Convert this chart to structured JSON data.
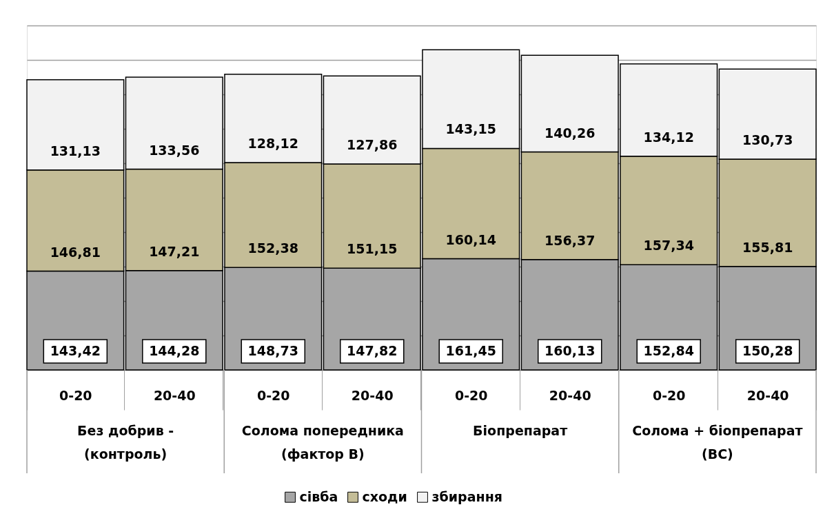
{
  "chart_data": {
    "type": "bar",
    "stacked": true,
    "categories": [
      "0-20",
      "20-40",
      "0-20",
      "20-40",
      "0-20",
      "20-40",
      "0-20",
      "20-40"
    ],
    "series": [
      {
        "name": "сівба",
        "color": "#a6a6a6",
        "values": [
          143.42,
          144.28,
          148.73,
          147.82,
          161.45,
          160.13,
          152.84,
          150.28
        ],
        "value_labels": [
          "143,42",
          "144,28",
          "148,73",
          "147,82",
          "161,45",
          "160,13",
          "152,84",
          "150,28"
        ]
      },
      {
        "name": "сходи",
        "color": "#c4bd97",
        "values": [
          146.81,
          147.21,
          152.38,
          151.15,
          160.14,
          156.37,
          157.34,
          155.81
        ],
        "value_labels": [
          "146,81",
          "147,21",
          "152,38",
          "151,15",
          "160,14",
          "156,37",
          "157,34",
          "155,81"
        ]
      },
      {
        "name": "збирання",
        "color": "#f2f2f2",
        "values": [
          131.13,
          133.56,
          128.12,
          127.86,
          143.15,
          140.26,
          134.12,
          130.73
        ],
        "value_labels": [
          "131,13",
          "133,56",
          "128,12",
          "127,86",
          "143,15",
          "140,26",
          "134,12",
          "130,73"
        ]
      }
    ],
    "annotations": [
      "Без добрив -\n(контроль)",
      "Солома попередника\n(фактор В)",
      "Біопрепарат",
      "Солома + біопрепарат\n(ВС)"
    ],
    "grid": "y",
    "tick_labels": "x",
    "legend": "bottom"
  }
}
